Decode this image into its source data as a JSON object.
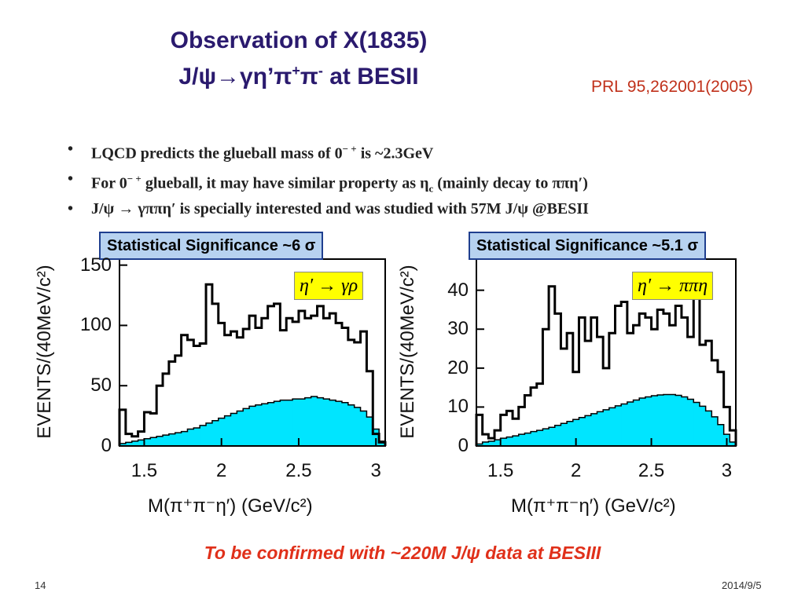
{
  "slide": {
    "title_line1": "Observation of X(1835)",
    "title_line2_pre": "J/ψ",
    "title_line2_arrow": "→",
    "title_line2_mid": "γη’π",
    "title_line2_sup1": "+",
    "title_line2_pi2": "π",
    "title_line2_sup2": "-",
    "title_line2_post": " at BESII",
    "reference": "PRL 95,262001(2005)",
    "bullets": [
      {
        "dot": "•",
        "text_a": "LQCD predicts the glueball mass of 0",
        "sup": "− +",
        "text_b": " is  ~2.3GeV"
      },
      {
        "dot": "•",
        "text_a": "For 0",
        "sup": "− +",
        "text_b": " glueball, it may have similar property as η",
        "sub": "c",
        "text_c": " (mainly decay to  ππη′)"
      },
      {
        "dot": "•",
        "text_a": "J/ψ → γππη′  is specially interested and was studied with 57M J/ψ @BESII"
      }
    ],
    "confirm_text": "To be confirmed with ~220M J/ψ  data at BESIII",
    "page_number": "14",
    "date": "2014/9/5",
    "colors": {
      "title": "#2a1a6e",
      "reference": "#c0311b",
      "confirm": "#e0301a",
      "fill": "#00e5ff",
      "sigbox": "#b7d2f0",
      "legend": "#ffff00"
    }
  },
  "chart_data": [
    {
      "type": "histogram",
      "significance_label": "Statistical Significance ~6 σ",
      "legend_label": "η′ → γρ",
      "ylabel": "EVENTS/(40MeV/c²)",
      "xlabel": "M(π⁺π⁻η′)   (GeV/c²)",
      "xlim": [
        1.34,
        3.06
      ],
      "ylim": [
        0,
        155
      ],
      "xticks": [
        "1.5",
        "2",
        "2.5",
        "3"
      ],
      "yticks": [
        "0",
        "50",
        "100",
        "150"
      ],
      "bin_edges_start": 1.34,
      "bin_width": 0.04,
      "series": [
        {
          "name": "data",
          "values": [
            30,
            10,
            8,
            12,
            28,
            27,
            50,
            60,
            70,
            75,
            92,
            88,
            83,
            85,
            134,
            118,
            102,
            92,
            95,
            90,
            97,
            108,
            98,
            106,
            116,
            118,
            96,
            106,
            103,
            112,
            106,
            108,
            116,
            106,
            110,
            102,
            98,
            88,
            86,
            95,
            62,
            10,
            3
          ]
        },
        {
          "name": "background",
          "values": [
            2,
            3,
            4,
            5,
            6,
            7,
            8,
            9,
            10,
            11,
            12,
            14,
            15,
            17,
            19,
            21,
            23,
            25,
            27,
            29,
            31,
            33,
            34,
            35,
            36,
            37,
            38,
            38,
            39,
            39,
            40,
            41,
            40,
            39,
            38,
            37,
            36,
            34,
            32,
            29,
            24,
            14,
            4
          ]
        }
      ]
    },
    {
      "type": "histogram",
      "significance_label": "Statistical Significance ~5.1 σ",
      "legend_label": "η′ → ππη",
      "ylabel": "EVENTS/(40MeV/c²)",
      "xlabel": "M(π⁺π⁻η′)   (GeV/c²)",
      "xlim": [
        1.34,
        3.06
      ],
      "ylim": [
        0,
        48
      ],
      "xticks": [
        "1.5",
        "2",
        "2.5",
        "3"
      ],
      "yticks": [
        "0",
        "10",
        "20",
        "30",
        "40"
      ],
      "bin_edges_start": 1.34,
      "bin_width": 0.04,
      "series": [
        {
          "name": "data",
          "values": [
            8,
            3,
            2,
            4,
            8,
            9,
            7,
            10,
            13,
            15,
            16,
            30,
            41,
            34,
            25,
            29,
            19,
            33,
            27,
            33,
            28,
            20,
            29,
            36,
            37,
            29,
            31,
            34,
            33,
            30,
            35,
            34,
            31,
            36,
            33,
            28,
            38,
            26,
            27,
            22,
            19,
            10,
            4
          ]
        },
        {
          "name": "background",
          "values": [
            0.5,
            1,
            1.2,
            1.6,
            2,
            2.3,
            2.6,
            3,
            3.3,
            3.7,
            4,
            4.4,
            4.8,
            5.3,
            5.8,
            6.3,
            6.8,
            7.3,
            7.8,
            8.3,
            8.8,
            9.3,
            9.8,
            10.3,
            10.8,
            11.3,
            11.8,
            12.3,
            12.6,
            12.9,
            13.1,
            13.2,
            13.2,
            13.0,
            12.6,
            12.0,
            11.2,
            10.2,
            9.0,
            7.5,
            5.5,
            3.0,
            1.0
          ]
        }
      ]
    }
  ]
}
